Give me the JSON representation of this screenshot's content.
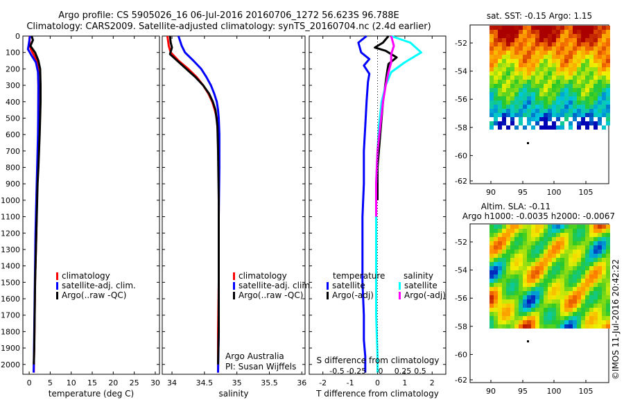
{
  "header": {
    "title1": "Argo profile: CS 5905026_16 06-Jul-2016 20160706_1272 56.623S 96.788E",
    "title2": "Climatology: CARS2009. Satellite-adjusted climatology: synTS_20160704.nc (2.4d earlier)"
  },
  "colors": {
    "climatology": "#ff0000",
    "satellite": "#0000ff",
    "argo": "#000000",
    "sal_satellite": "#00ffff",
    "sal_argo": "#ff00ff"
  },
  "chart_data": [
    {
      "type": "line",
      "xlabel": "temperature (deg C)",
      "xlim": [
        -1.5,
        31
      ],
      "xticks": [
        0,
        5,
        10,
        15,
        20,
        25,
        30
      ],
      "ylim": [
        2060,
        0
      ],
      "yticks": [
        0,
        100,
        200,
        300,
        400,
        500,
        600,
        700,
        800,
        900,
        1000,
        1100,
        1200,
        1300,
        1400,
        1500,
        1600,
        1700,
        1800,
        1900,
        2000
      ],
      "legend": [
        "climatology",
        "satellite-adj. clim.",
        "Argo(..raw -QC)"
      ],
      "series": [
        {
          "name": "climatology",
          "color": "#ff0000",
          "x": [
            0.1,
            0.1,
            0.4,
            1.0,
            1.8,
            2.1,
            2.2,
            2.2,
            2.15,
            2.1,
            2.0,
            1.9,
            1.8,
            1.7,
            1.6,
            1.5,
            1.4,
            1.3,
            1.2,
            1.1,
            1.1
          ],
          "y": [
            0,
            50,
            80,
            110,
            150,
            200,
            300,
            500,
            600,
            700,
            800,
            900,
            1000,
            1200,
            1300,
            1400,
            1500,
            1700,
            1900,
            2000,
            2050
          ]
        },
        {
          "name": "satellite-adj. clim.",
          "color": "#0000ff",
          "x": [
            0.2,
            -0.1,
            -0.3,
            0.6,
            1.6,
            2.1,
            2.2,
            2.15,
            2.1,
            2.0,
            1.9,
            1.8,
            1.7,
            1.5,
            1.4,
            1.3,
            1.2,
            1.1,
            1.05
          ],
          "y": [
            0,
            50,
            80,
            120,
            160,
            220,
            300,
            500,
            600,
            700,
            800,
            900,
            1000,
            1200,
            1400,
            1600,
            1800,
            2000,
            2050
          ]
        },
        {
          "name": "Argo(..raw -QC)",
          "color": "#000000",
          "x": [
            0.6,
            0.9,
            0.3,
            1.4,
            2.2,
            2.6,
            2.7,
            2.7,
            2.6,
            2.5,
            2.2,
            2.0,
            1.8,
            1.6,
            1.4,
            1.3,
            1.2,
            1.1
          ],
          "y": [
            0,
            25,
            60,
            100,
            150,
            200,
            300,
            400,
            500,
            600,
            800,
            900,
            1100,
            1300,
            1500,
            1700,
            1900,
            2000
          ]
        }
      ]
    },
    {
      "type": "line",
      "xlabel": "salinity",
      "xlim": [
        33.85,
        36.05
      ],
      "xticks": [
        34,
        34.5,
        35,
        35.5,
        36
      ],
      "ylim": [
        2060,
        0
      ],
      "legend": [
        "climatology",
        "satellite-adj. clim.",
        "Argo(..raw -QC)"
      ],
      "annotation": [
        "Argo Australia",
        "PI: Susan Wijffels"
      ],
      "series": [
        {
          "name": "climatology",
          "color": "#ff0000",
          "x": [
            33.93,
            33.95,
            33.98,
            34.1,
            34.25,
            34.38,
            34.48,
            34.56,
            34.62,
            34.66,
            34.69,
            34.71,
            34.72,
            34.72,
            34.72,
            34.72,
            34.71,
            34.71
          ],
          "y": [
            0,
            60,
            100,
            150,
            200,
            250,
            300,
            350,
            400,
            450,
            500,
            600,
            700,
            900,
            1200,
            1500,
            1800,
            2050
          ]
        },
        {
          "name": "satellite-adj. clim.",
          "color": "#0000ff",
          "x": [
            34.1,
            34.15,
            34.2,
            34.33,
            34.45,
            34.53,
            34.6,
            34.65,
            34.69,
            34.71,
            34.72,
            34.73,
            34.73,
            34.72,
            34.72,
            34.72,
            34.71
          ],
          "y": [
            0,
            60,
            100,
            150,
            200,
            250,
            300,
            350,
            400,
            450,
            500,
            600,
            800,
            1100,
            1500,
            1800,
            2050
          ]
        },
        {
          "name": "Argo(..raw -QC)",
          "color": "#000000",
          "x": [
            33.97,
            33.98,
            34.0,
            33.97,
            34.08,
            34.22,
            34.36,
            34.48,
            34.57,
            34.63,
            34.67,
            34.7,
            34.71,
            34.72,
            34.72,
            34.72,
            34.71
          ],
          "y": [
            0,
            40,
            70,
            110,
            150,
            200,
            250,
            300,
            350,
            400,
            450,
            550,
            700,
            1000,
            1400,
            1800,
            2000
          ]
        }
      ]
    },
    {
      "type": "line",
      "xlabel": "T difference from climatology",
      "xlabel2": "S difference from climatology",
      "xlim": [
        -2.5,
        2.5
      ],
      "xticks": [
        -2,
        -1,
        0,
        1,
        2
      ],
      "x2ticks": [
        "-0.5",
        "-0.25",
        "0",
        "0.25",
        "0.5"
      ],
      "ylim": [
        2060,
        0
      ],
      "legend": {
        "temperature_title": "temperature",
        "salinity_title": "salinity",
        "temperature": [
          "satellite",
          "Argo(-adj)"
        ],
        "salinity": [
          "satellite",
          "Argo(-adj)"
        ]
      },
      "series": [
        {
          "name": "satellite",
          "group": "temperature",
          "color": "#0000ff",
          "x": [
            -0.4,
            -0.7,
            -0.6,
            -0.3,
            -0.5,
            -0.3,
            -0.35,
            -0.4,
            -0.45,
            -0.5,
            -0.5,
            -0.55,
            -0.55,
            -0.55,
            -0.5,
            -0.5,
            -0.45,
            -0.45
          ],
          "y": [
            0,
            40,
            100,
            140,
            180,
            230,
            280,
            400,
            550,
            700,
            900,
            1100,
            1300,
            1500,
            1700,
            1850,
            1950,
            2050
          ]
        },
        {
          "name": "Argo(-adj)",
          "group": "temperature",
          "color": "#000000",
          "x": [
            0.4,
            0.2,
            -0.1,
            0.3,
            0.7,
            0.4,
            0.35,
            0.3,
            0.2,
            0.1,
            0.0,
            0.0
          ],
          "y": [
            0,
            40,
            70,
            90,
            130,
            170,
            220,
            280,
            400,
            600,
            800,
            1000
          ]
        },
        {
          "name": "satellite",
          "group": "salinity",
          "color": "#00ffff",
          "x": [
            0.5,
            1.2,
            1.6,
            1.0,
            0.5,
            0.3,
            0.15,
            0.05,
            0.0,
            -0.05,
            -0.05,
            -0.05,
            -0.05,
            0.0,
            0.0
          ],
          "y": [
            0,
            40,
            100,
            160,
            220,
            300,
            400,
            550,
            700,
            900,
            1100,
            1400,
            1700,
            1950,
            2050
          ]
        },
        {
          "name": "Argo(-adj)",
          "group": "salinity",
          "color": "#ff00ff",
          "x": [
            0.5,
            0.6,
            0.5,
            0.5,
            0.4,
            0.3,
            0.2,
            0.1,
            0.0,
            -0.05,
            -0.05
          ],
          "y": [
            0,
            60,
            110,
            160,
            220,
            300,
            400,
            550,
            700,
            900,
            1100
          ]
        }
      ]
    }
  ],
  "maps": {
    "sst": {
      "title": "sat. SST: -0.15 Argo: 1.15",
      "xticks": [
        "90",
        "95",
        "100",
        "105"
      ],
      "yticks": [
        "-52",
        "-54",
        "-56",
        "-58",
        "-60",
        "-62"
      ]
    },
    "sla": {
      "title1": "Altim. SLA: -0.11",
      "title2": "Argo h1000: -0.0035 h2000: -0.0067",
      "xticks": [
        "90",
        "95",
        "100",
        "105"
      ],
      "yticks": [
        "-52",
        "-54",
        "-56",
        "-58",
        "-60",
        "-62"
      ]
    }
  },
  "footer": {
    "stamp": "©IMOS 11-Jul-2016 20:42:22"
  }
}
